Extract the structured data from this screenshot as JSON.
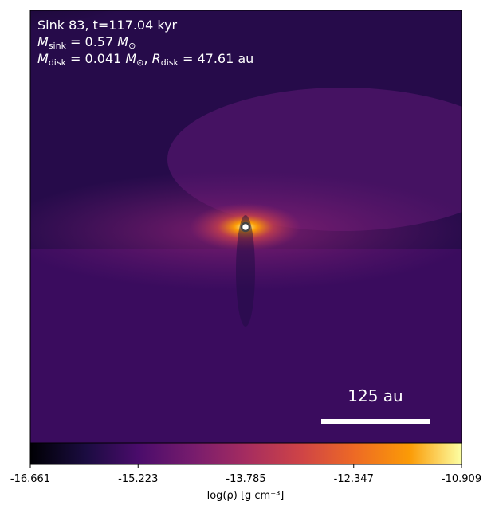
{
  "chart_data": {
    "type": "image",
    "annotations": [
      [
        {
          "text": "Sink 83, t=117.04 kyr",
          "style": "normal"
        }
      ],
      [
        {
          "text": "M",
          "style": "italic"
        },
        {
          "text": "sink",
          "style": "sub"
        },
        {
          "text": " = 0.57 ",
          "style": "normal"
        },
        {
          "text": "M",
          "style": "italic"
        },
        {
          "text": "⊙",
          "style": "sub"
        }
      ],
      [
        {
          "text": "M",
          "style": "italic"
        },
        {
          "text": "disk",
          "style": "sub"
        },
        {
          "text": " = 0.041 ",
          "style": "normal"
        },
        {
          "text": "M",
          "style": "italic"
        },
        {
          "text": "⊙",
          "style": "sub"
        },
        {
          "text": ", ",
          "style": "normal"
        },
        {
          "text": "R",
          "style": "italic"
        },
        {
          "text": "disk",
          "style": "sub"
        },
        {
          "text": " = 47.61 au",
          "style": "normal"
        }
      ]
    ],
    "scale_bar_label": "125 au",
    "colorbar": {
      "label": "log(ρ) [g cm⁻³]",
      "lim": [
        -16.661,
        -10.909
      ],
      "ticks": [
        -16.661,
        -15.223,
        -13.785,
        -12.347,
        -10.909
      ]
    }
  }
}
